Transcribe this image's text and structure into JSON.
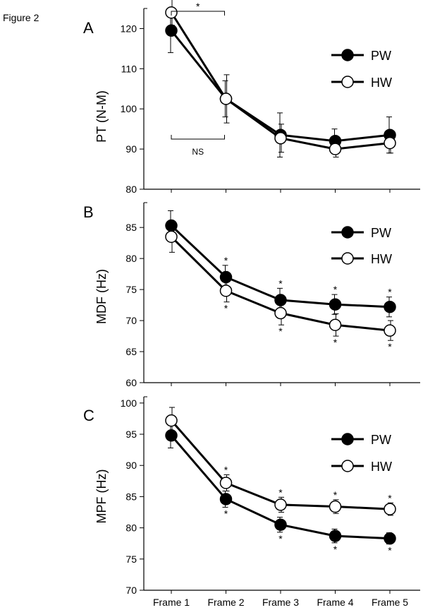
{
  "figure_label": "Figure 2",
  "colors": {
    "ink": "#000000",
    "paper": "#ffffff"
  },
  "x_categories": [
    "Frame 1",
    "Frame 2",
    "Frame 3",
    "Frame 4",
    "Frame 5"
  ],
  "chart_data": [
    {
      "panel": "A",
      "type": "line",
      "ylabel": "PT (N-M)",
      "ylim": [
        80,
        125
      ],
      "yticks": [
        80,
        90,
        100,
        110,
        120
      ],
      "categories": [
        "Frame 1",
        "Frame 2",
        "Frame 3",
        "Frame 4",
        "Frame 5"
      ],
      "legend_position": "right",
      "series": [
        {
          "name": "PW",
          "marker": "filled",
          "values": [
            119.5,
            102.5,
            93.5,
            92,
            93.5
          ],
          "err": [
            5.5,
            4.5,
            5.5,
            3,
            4.5
          ]
        },
        {
          "name": "HW",
          "marker": "open",
          "values": [
            124,
            102.5,
            92.7,
            90,
            91.5
          ],
          "err": [
            3.2,
            6,
            3.5,
            2,
            2.5
          ]
        }
      ],
      "upper_marks": [
        "",
        "",
        "",
        "",
        ""
      ],
      "lower_marks": [
        "",
        "",
        "",
        "",
        ""
      ],
      "brackets": [
        {
          "from": "Frame 1",
          "to": "Frame 2",
          "label": "*",
          "position": "top"
        },
        {
          "from": "Frame 1",
          "to": "Frame 2",
          "label": "NS",
          "position": "bottom"
        }
      ]
    },
    {
      "panel": "B",
      "type": "line",
      "ylabel": "MDF (Hz)",
      "ylim": [
        60,
        89
      ],
      "yticks": [
        60,
        65,
        70,
        75,
        80,
        85
      ],
      "categories": [
        "Frame 1",
        "Frame 2",
        "Frame 3",
        "Frame 4",
        "Frame 5"
      ],
      "legend_position": "right",
      "series": [
        {
          "name": "PW",
          "marker": "filled",
          "values": [
            85.3,
            77,
            73.3,
            72.6,
            72.2
          ],
          "err": [
            2.4,
            1.9,
            1.9,
            1.6,
            1.6
          ]
        },
        {
          "name": "HW",
          "marker": "open",
          "values": [
            83.5,
            74.8,
            71.2,
            69.3,
            68.4
          ],
          "err": [
            2.5,
            1.8,
            1.9,
            1.8,
            1.6
          ]
        }
      ],
      "upper_marks": [
        "",
        "*",
        "*",
        "*",
        "*"
      ],
      "lower_marks": [
        "",
        "*",
        "*",
        "*",
        "*"
      ],
      "brackets": []
    },
    {
      "panel": "C",
      "type": "line",
      "ylabel": "MPF (Hz)",
      "ylim": [
        70,
        101
      ],
      "yticks": [
        70,
        75,
        80,
        85,
        90,
        95,
        100
      ],
      "categories": [
        "Frame 1",
        "Frame 2",
        "Frame 3",
        "Frame 4",
        "Frame 5"
      ],
      "legend_position": "right",
      "series": [
        {
          "name": "PW",
          "marker": "filled",
          "values": [
            94.8,
            84.6,
            80.5,
            78.7,
            78.3
          ],
          "err": [
            2,
            1.3,
            1.2,
            1.1,
            0.9
          ]
        },
        {
          "name": "HW",
          "marker": "open",
          "values": [
            97.2,
            87.2,
            83.7,
            83.4,
            83
          ],
          "err": [
            2.1,
            1.3,
            1.2,
            1.1,
            1
          ]
        }
      ],
      "upper_marks": [
        "",
        "*",
        "*",
        "*",
        "*"
      ],
      "lower_marks": [
        "",
        "*",
        "*",
        "*",
        "*"
      ],
      "brackets": []
    }
  ]
}
